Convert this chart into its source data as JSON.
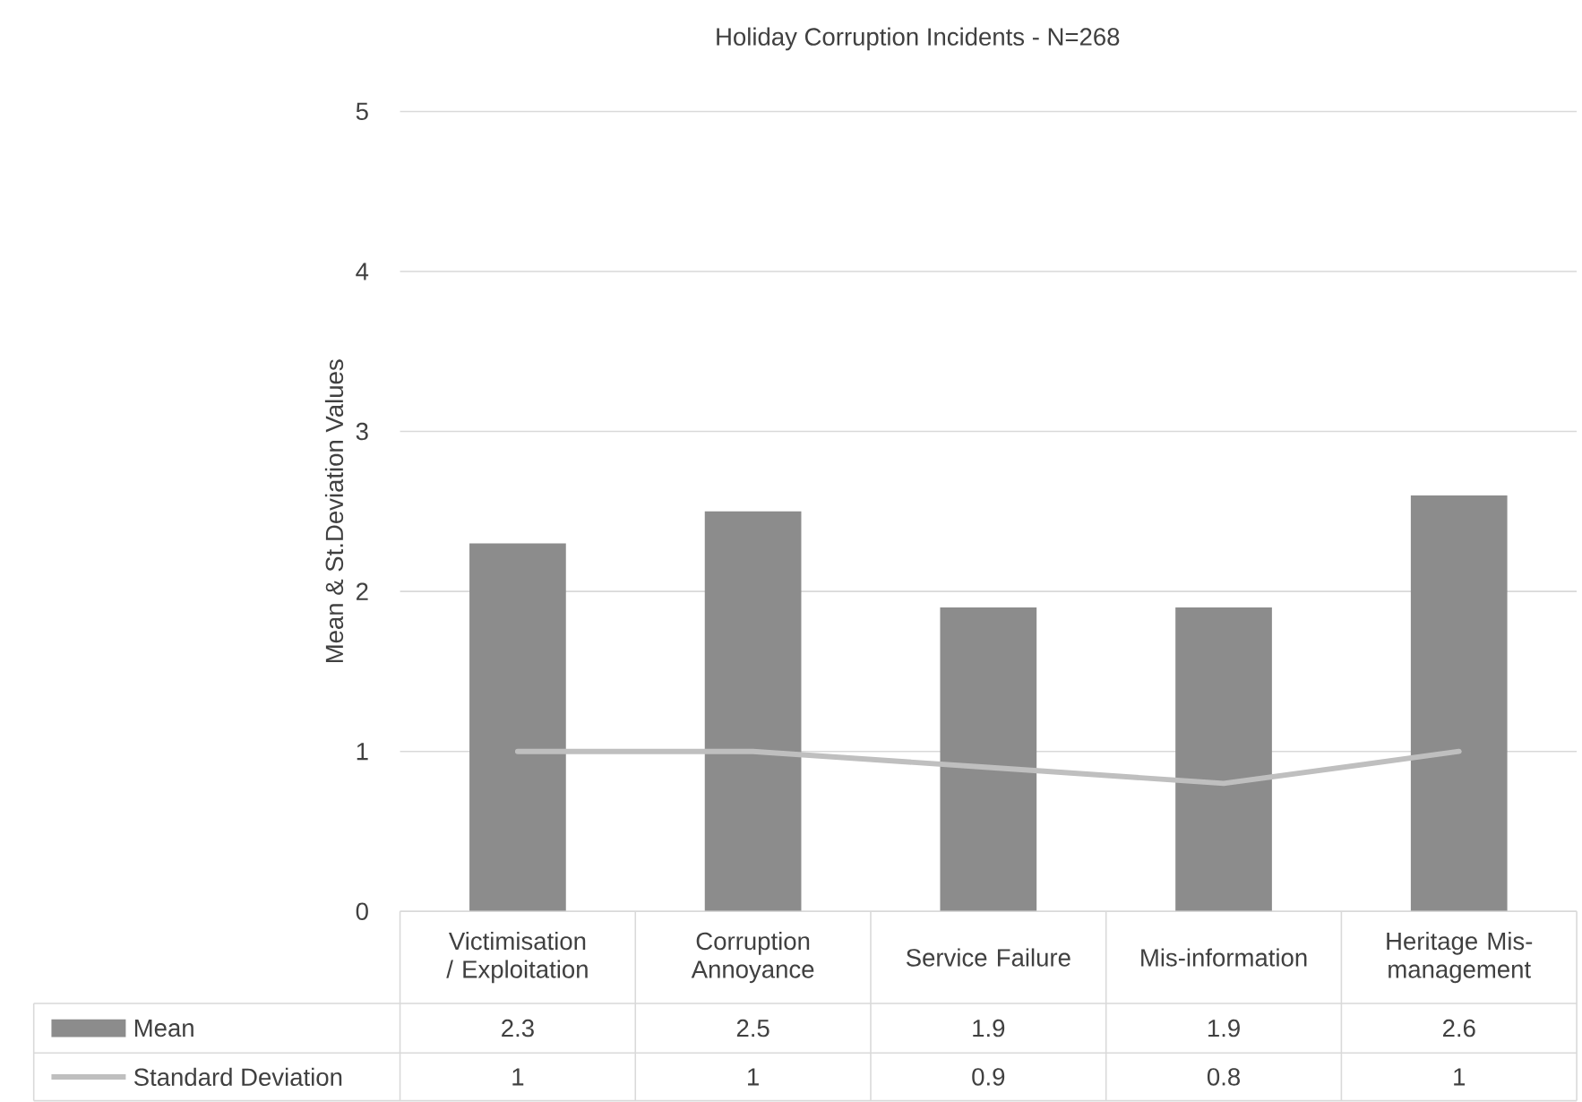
{
  "chart_data": {
    "type": "bar",
    "title": "Holiday Corruption Incidents - N=268",
    "ylabel": "Mean & St.Deviation Values",
    "categories": [
      "Victimisation / Exploitation",
      "Corruption Annoyance",
      "Service Failure",
      "Mis-information",
      "Heritage Mis-management"
    ],
    "series": [
      {
        "name": "Mean",
        "color": "#8c8c8c",
        "values": [
          2.3,
          2.5,
          1.9,
          1.9,
          2.6
        ]
      },
      {
        "name": "Standard Deviation",
        "type": "line",
        "color": "#bfbfbf",
        "values": [
          1,
          1,
          0.9,
          0.8,
          1
        ]
      }
    ],
    "ylim": [
      0,
      5
    ],
    "yticks": [
      0,
      1,
      2,
      3,
      4,
      5
    ],
    "grid": "y",
    "legend": "bottom",
    "data_labels": true
  }
}
